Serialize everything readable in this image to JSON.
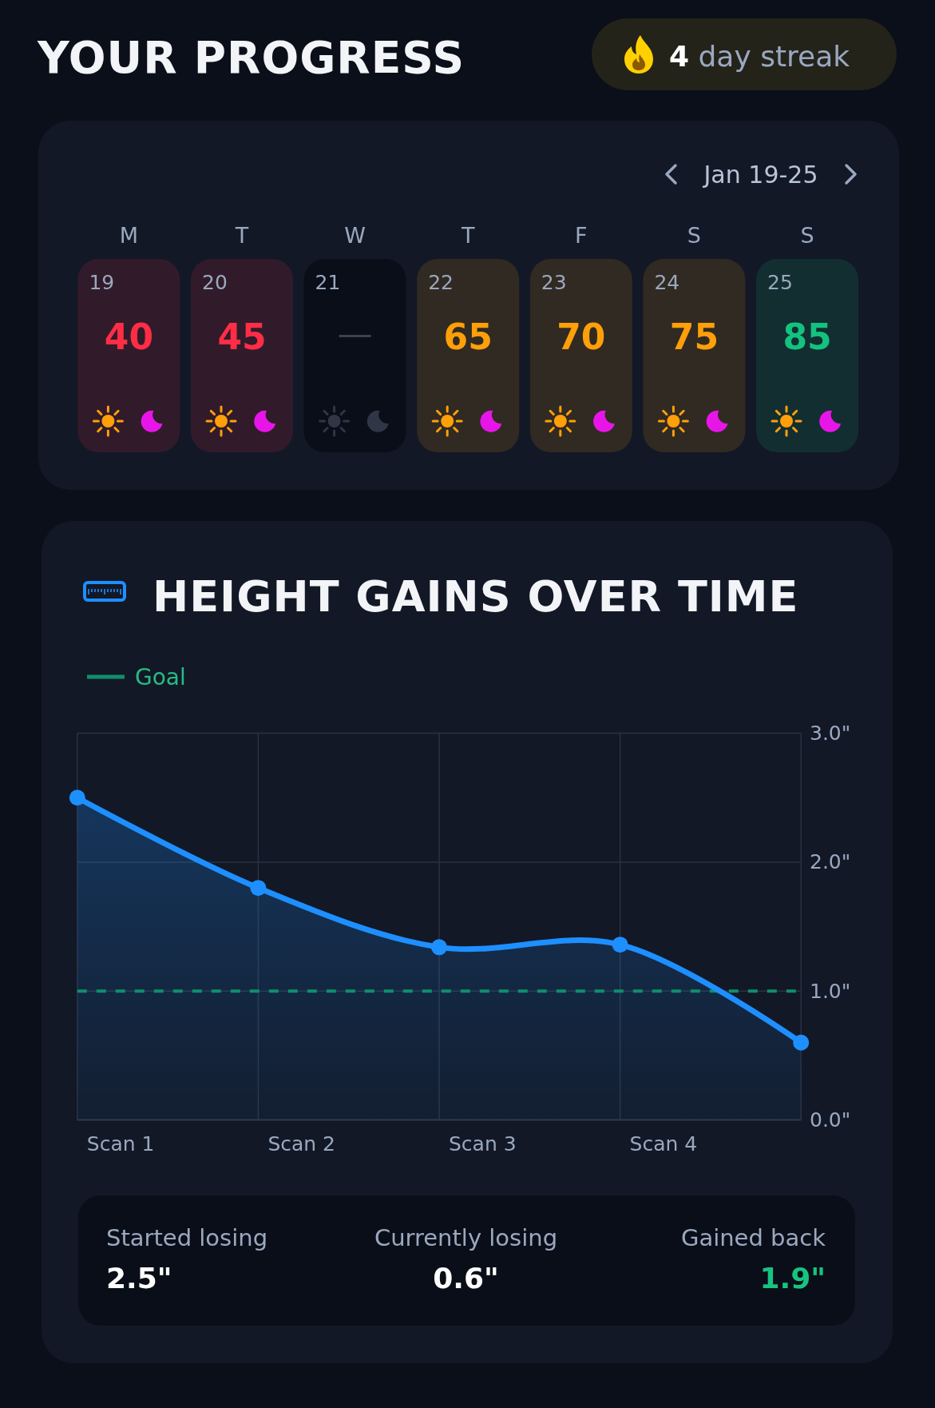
{
  "chart_data": [
    {
      "type": "heatmap",
      "title": "YOUR PROGRESS",
      "annotations": [
        "4 day streak",
        "Jan 19-25",
        "M",
        "T",
        "W",
        "T",
        "F",
        "S",
        "S"
      ],
      "categories": [
        "19",
        "20",
        "21",
        "22",
        "23",
        "24",
        "25"
      ],
      "y_categories": [
        null
      ],
      "cells": [
        [
          40,
          45,
          null,
          65,
          70,
          75,
          85
        ]
      ],
      "colors": [
        "#ff2d46",
        "#ff2d46",
        "#3a4252",
        "#ff9f0a",
        "#ff9f0a",
        "#ff9f0a",
        "#13c27e"
      ],
      "data_labels": true
    },
    {
      "type": "area",
      "title": "HEIGHT GAINS OVER TIME",
      "categories": [
        "Scan 1",
        "Scan 2",
        "Scan 3",
        "Scan 4",
        null
      ],
      "values": [
        2.5,
        1.8,
        1.34,
        1.36,
        0.6
      ],
      "color": "#1e8fff",
      "ylim": [
        0,
        3
      ],
      "yticks": [
        {
          "value": 0,
          "label": "0.0\""
        },
        {
          "value": 1,
          "label": "1.0\""
        },
        {
          "value": 2,
          "label": "2.0\""
        },
        {
          "value": 3,
          "label": "3.0\""
        }
      ],
      "grid": true,
      "marker": "circle",
      "legend": "top left",
      "ref_lines": [
        {
          "axis": "y",
          "value": 1,
          "label": "Goal",
          "color": "#0f8f6a",
          "line_style": "dashed"
        }
      ],
      "annotations": [
        "Started losing",
        "2.5\"",
        "Currently losing",
        "0.6\"",
        "Gained back",
        "1.9\""
      ]
    }
  ]
}
